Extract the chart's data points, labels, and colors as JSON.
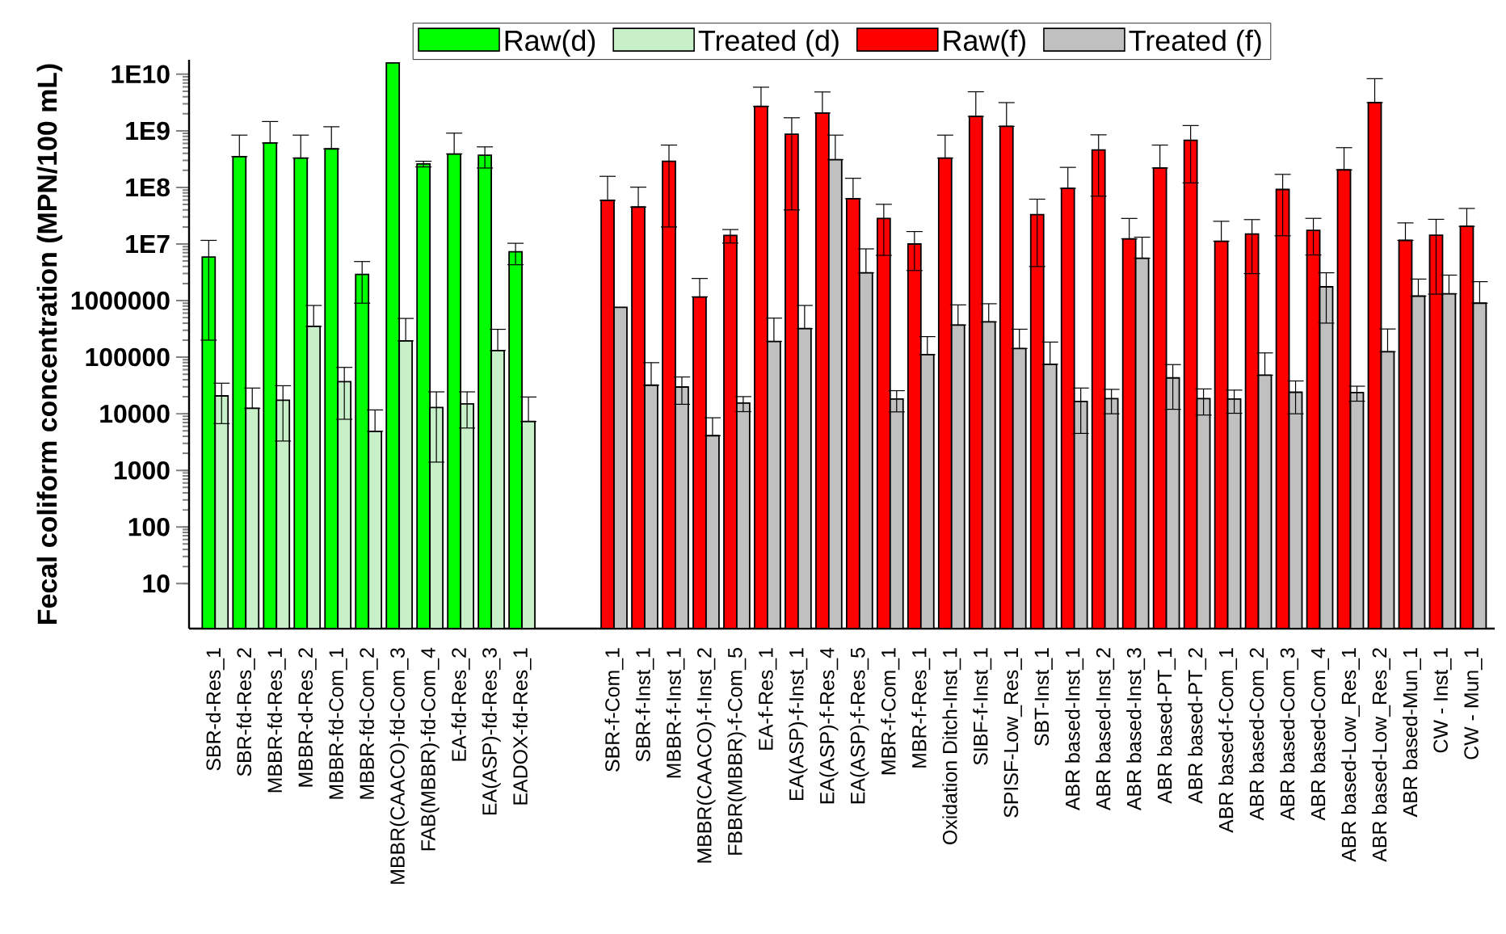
{
  "chart_data": {
    "type": "bar",
    "ylabel": "Fecal coliform concentration (MPN/100 mL)",
    "categories": [
      "SBR-d-Res_1",
      "SBR-fd-Res_2",
      "MBBR-fd-Res_1",
      "MBBR-d-Res_2",
      "MBBR-fd-Com_1",
      "MBBR-fd-Com_2",
      "MBBR(CAACO)-fd-Com_3",
      "FAB(MBBR)-fd-Com_4",
      "EA-fd-Res_2",
      "EA(ASP)-fd-Res_3",
      "EADOX-fd-Res_1",
      null,
      null,
      "SBR-f-Com_1",
      "SBR-f-Inst_1",
      "MBBR-f-Inst_1",
      "MBBR(CAACO)-f-Inst_2",
      "FBBR(MBBR)-f-Com_5",
      "EA-f-Res_1",
      "EA(ASP)-f-Inst_1",
      "EA(ASP)-f-Res_4",
      "EA(ASP)-f-Res_5",
      "MBR-f-Com_1",
      "MBR-f-Res_1",
      "Oxidation Ditch-Inst_1",
      "SIBF-f-Inst_1",
      "SPISF-Low_Res_1",
      "SBT-Inst_1",
      "ABR based-Inst_1",
      "ABR based-Inst_2",
      "ABR based-Inst_3",
      "ABR based-PT_1",
      "ABR based-PT_2",
      "ABR based-f-Com_1",
      "ABR based-Com_2",
      "ABR based-Com_3",
      "ABR based-Com_4",
      "ABR based-Low_Res_1",
      "ABR based-Low_Res_2",
      "ABR based-Mun_1",
      "CW - Inst_1",
      "CW - Mun_1"
    ],
    "series": [
      {
        "name": "Raw(d)",
        "color": "#00ff00",
        "values": [
          5900000.0,
          350000000.0,
          610000000.0,
          330000000.0,
          480000000.0,
          2900000.0,
          15800000000.0,
          260000000.0,
          390000000.0,
          370000000.0,
          7300000.0,
          null,
          null,
          null,
          null,
          null,
          null,
          null,
          null,
          null,
          null,
          null,
          null,
          null,
          null,
          null,
          null,
          null,
          null,
          null,
          null,
          null,
          null,
          null,
          null,
          null,
          null,
          null,
          null,
          null,
          null,
          null
        ],
        "errors": [
          5700000.0,
          490000000.0,
          850000000.0,
          510000000.0,
          700000000.0,
          2000000.0,
          null,
          30000000.0,
          520000000.0,
          150000000.0,
          3000000.0,
          null,
          null,
          null,
          null,
          null,
          null,
          null,
          null,
          null,
          null,
          null,
          null,
          null,
          null,
          null,
          null,
          null,
          null,
          null,
          null,
          null,
          null,
          null,
          null,
          null,
          null,
          null,
          null,
          null,
          null,
          null
        ]
      },
      {
        "name": "Treated (d)",
        "color": "#c8f0c8",
        "values": [
          20700.0,
          12500.0,
          17300.0,
          350000.0,
          37000.0,
          4900.0,
          194000.0,
          12900.0,
          15000.0,
          131000.0,
          7300.0,
          null,
          null,
          null,
          null,
          null,
          null,
          null,
          null,
          null,
          null,
          null,
          null,
          null,
          null,
          null,
          null,
          null,
          null,
          null,
          null,
          null,
          null,
          null,
          null,
          null,
          null,
          null,
          null,
          null,
          null,
          null
        ],
        "errors": [
          14000.0,
          16000.0,
          14000.0,
          470000.0,
          29000.0,
          6800.0,
          290000.0,
          11500.0,
          9400.0,
          180000.0,
          12500.0,
          null,
          null,
          null,
          null,
          null,
          null,
          null,
          null,
          null,
          null,
          null,
          null,
          null,
          null,
          null,
          null,
          null,
          null,
          null,
          null,
          null,
          null,
          null,
          null,
          null,
          null,
          null,
          null,
          null,
          null,
          null
        ]
      },
      {
        "name": "Raw(f)",
        "color": "#ff0000",
        "values": [
          null,
          null,
          null,
          null,
          null,
          null,
          null,
          null,
          null,
          null,
          null,
          null,
          null,
          59000000.0,
          45000000.0,
          290000000.0,
          1160000.0,
          14200000.0,
          2700000000.0,
          870000000.0,
          2060000000.0,
          63000000.0,
          28300000.0,
          10000000.0,
          330000000.0,
          1800000000.0,
          1200000000.0,
          33000000.0,
          96000000.0,
          460000000.0,
          12300000.0,
          220000000.0,
          680000000.0,
          11200000.0,
          15000000.0,
          92000000.0,
          17400000.0,
          204000000.0,
          3150000000.0,
          11600000.0,
          14300000.0,
          20500000.0
        ],
        "errors": [
          null,
          null,
          null,
          null,
          null,
          null,
          null,
          null,
          null,
          null,
          null,
          null,
          null,
          98000000.0,
          56000000.0,
          270000000.0,
          1300000.0,
          3800000.0,
          3200000000.0,
          830000000.0,
          2800000000.0,
          82000000.0,
          22000000.0,
          6600000.0,
          510000000.0,
          3100000000.0,
          1950000000.0,
          29000000.0,
          130000000.0,
          390000000.0,
          16000000.0,
          340000000.0,
          560000000.0,
          14000000.0,
          12000000.0,
          78000000.0,
          11000000.0,
          300000000.0,
          5200000000.0,
          12000000.0,
          13000000.0,
          22000000.0
        ]
      },
      {
        "name": "Treated (f)",
        "color": "#c0c0c0",
        "values": [
          null,
          null,
          null,
          null,
          null,
          null,
          null,
          null,
          null,
          null,
          null,
          null,
          null,
          760000.0,
          32000.0,
          29700.0,
          4100.0,
          15500.0,
          190000.0,
          320000.0,
          310000000.0,
          3100000.0,
          18200.0,
          111000.0,
          370000.0,
          420000.0,
          142000.0,
          75000.0,
          16500.0,
          18500.0,
          5600000.0,
          43000.0,
          18500.0,
          18200.0,
          48000.0,
          24000.0,
          1750000.0,
          23700.0,
          125000.0,
          1200000.0,
          1320000.0,
          900000.0
        ],
        "errors": [
          null,
          null,
          null,
          null,
          null,
          null,
          null,
          null,
          null,
          null,
          null,
          null,
          null,
          null,
          48000.0,
          15000.0,
          4400.0,
          4600.0,
          300000.0,
          500000.0,
          530000000.0,
          5100000.0,
          7400.0,
          120000.0,
          470000.0,
          460000.0,
          170000.0,
          110000.0,
          12000.0,
          8500.0,
          7600000.0,
          31000.0,
          9000.0,
          8000.0,
          71000.0,
          14000.0,
          1350000.0,
          7000.0,
          190000.0,
          1200000.0,
          1500000.0,
          1260000.0
        ]
      }
    ],
    "log": true,
    "ylim": [
      1.6,
      18000000000.0
    ],
    "yticks": [
      10,
      100,
      1000,
      10000,
      100000,
      1000000,
      {
        "value": 10000000.0,
        "label": "1E7"
      },
      {
        "value": 100000000.0,
        "label": "1E8"
      },
      {
        "value": 1000000000.0,
        "label": "1E9"
      },
      {
        "value": 10000000000.0,
        "label": "1E10"
      }
    ],
    "legend": "top",
    "grid": false
  }
}
